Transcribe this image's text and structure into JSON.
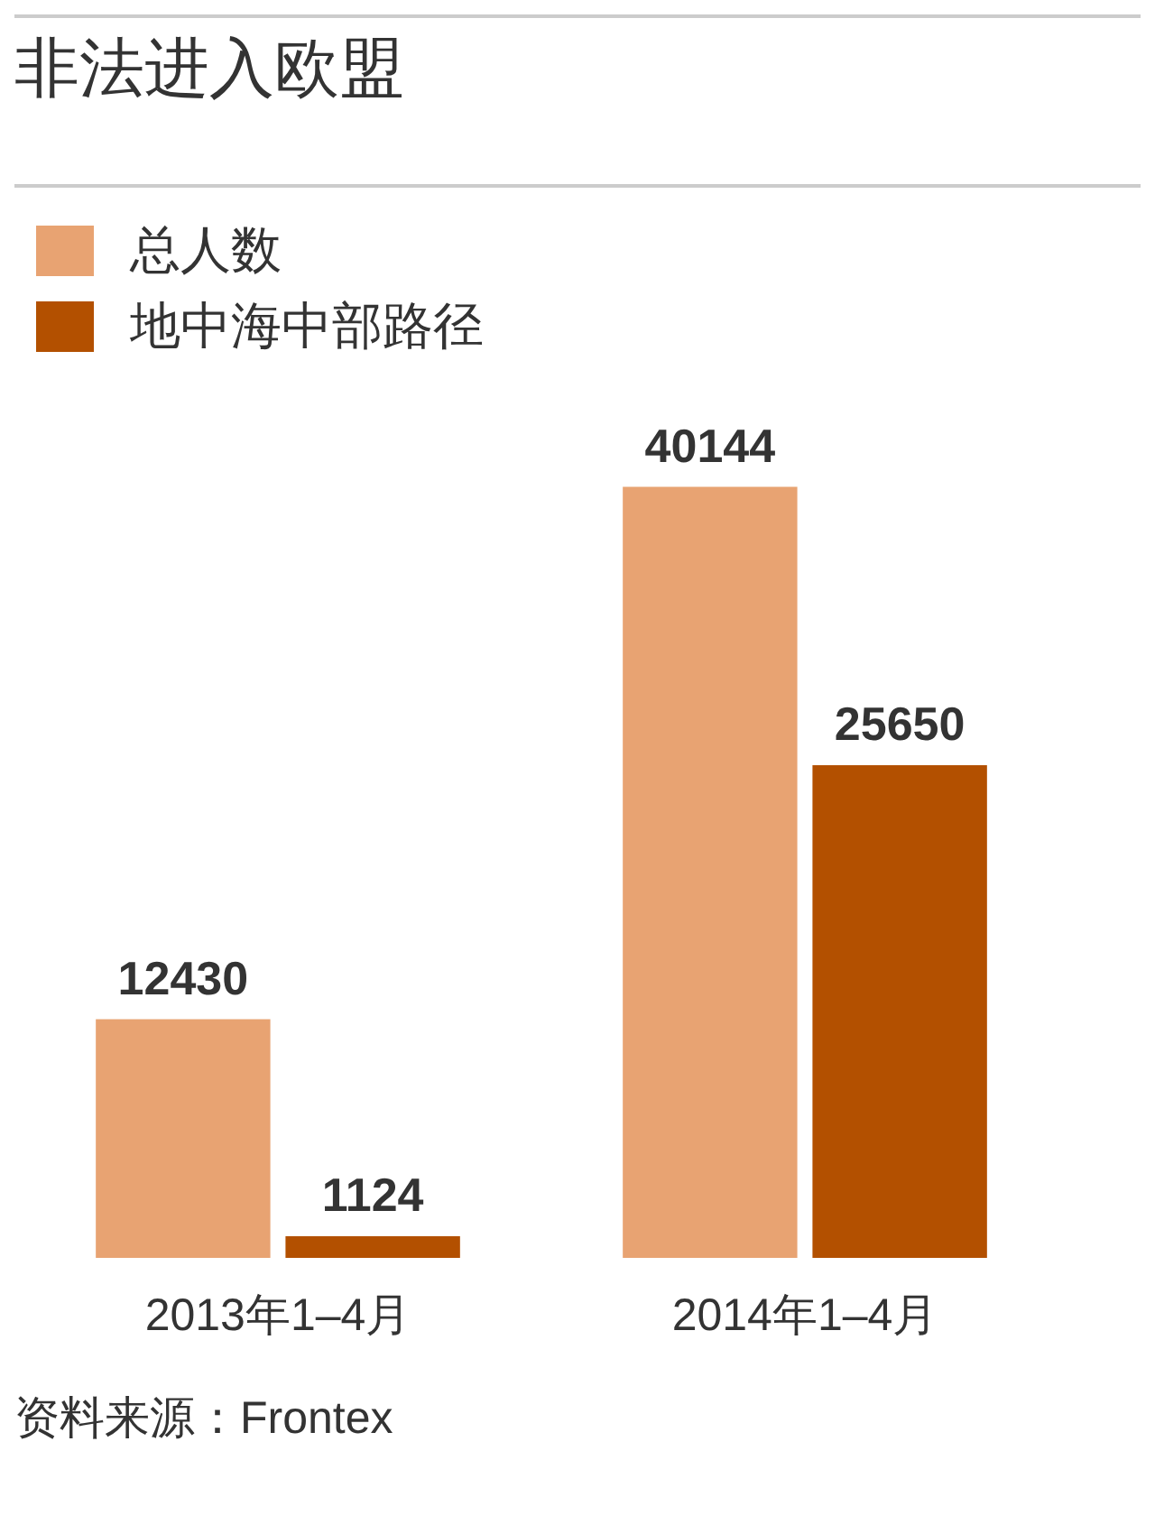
{
  "chart_data": {
    "type": "bar",
    "title": "非法进入欧盟",
    "categories": [
      "2013年1–4月",
      "2014年1–4月"
    ],
    "series": [
      {
        "name": "总人数",
        "color": "#e8a372",
        "values": [
          12430,
          40144
        ]
      },
      {
        "name": "地中海中部路径",
        "color": "#b35000",
        "values": [
          1124,
          25650
        ]
      }
    ],
    "data_labels": true,
    "legend": "top left",
    "grid": false,
    "tick_labels": "x",
    "annotations": [
      "资料来源：Frontex"
    ]
  }
}
